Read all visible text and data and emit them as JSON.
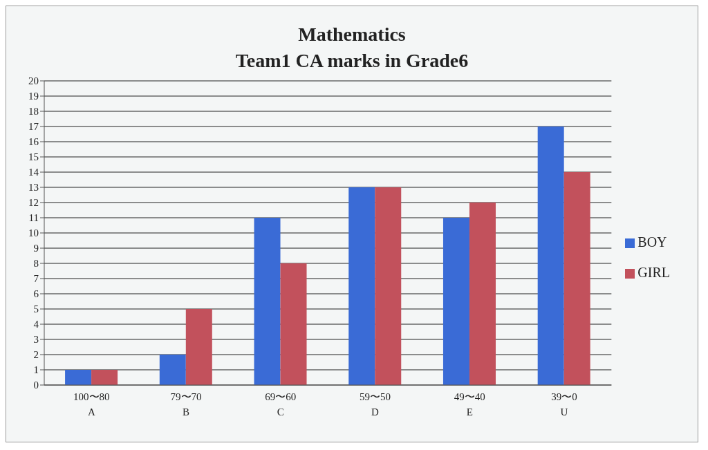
{
  "chart_data": {
    "type": "bar",
    "title": "Mathematics\nTeam1 CA marks in Grade6",
    "categories": [
      "100〜80\nA",
      "79〜70\nB",
      "69〜60\nC",
      "59〜50\nD",
      "49〜40\nE",
      "39〜0\nU"
    ],
    "series": [
      {
        "name": "BOY",
        "color": "#3a6bd6",
        "values": [
          1,
          2,
          11,
          13,
          11,
          17
        ]
      },
      {
        "name": "GIRL",
        "color": "#c2515c",
        "values": [
          1,
          5,
          8,
          13,
          12,
          14
        ]
      }
    ],
    "ylim": [
      0,
      20
    ],
    "yticks": [
      0,
      1,
      2,
      3,
      4,
      5,
      6,
      7,
      8,
      9,
      10,
      11,
      12,
      13,
      14,
      15,
      16,
      17,
      18,
      19,
      20
    ],
    "grid": "y",
    "legend": "right"
  }
}
